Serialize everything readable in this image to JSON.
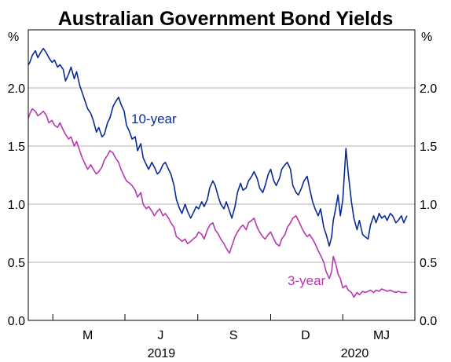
{
  "chart_data": {
    "type": "line",
    "title": "Australian Government Bond Yields",
    "unit_left": "%",
    "unit_right": "%",
    "y_ticks": [
      "0.0",
      "0.5",
      "1.0",
      "1.5",
      "2.0"
    ],
    "ylim": [
      0,
      2.5
    ],
    "x_range": [
      "2019-03-01",
      "2020-07-01"
    ],
    "month_labels": [
      "M",
      "J",
      "S",
      "D",
      "M",
      "J"
    ],
    "year_labels": [
      "2019",
      "2020"
    ],
    "grid": "horizontal",
    "colors": {
      "ten_year": "#0a2a96",
      "three_year": "#b838b0"
    },
    "series": [
      {
        "name": "10-year",
        "label": "10-year",
        "color": "#0a2a96",
        "x": [
          "2019-03-01",
          "2019-03-03",
          "2019-03-06",
          "2019-03-10",
          "2019-03-13",
          "2019-03-17",
          "2019-03-20",
          "2019-03-24",
          "2019-03-27",
          "2019-03-31",
          "2019-04-03",
          "2019-04-07",
          "2019-04-10",
          "2019-04-14",
          "2019-04-17",
          "2019-04-21",
          "2019-04-24",
          "2019-04-28",
          "2019-05-01",
          "2019-05-05",
          "2019-05-08",
          "2019-05-12",
          "2019-05-15",
          "2019-05-19",
          "2019-05-22",
          "2019-05-26",
          "2019-05-29",
          "2019-06-02",
          "2019-06-05",
          "2019-06-09",
          "2019-06-12",
          "2019-06-16",
          "2019-06-19",
          "2019-06-23",
          "2019-06-26",
          "2019-06-30",
          "2019-07-03",
          "2019-07-07",
          "2019-07-10",
          "2019-07-14",
          "2019-07-17",
          "2019-07-21",
          "2019-07-24",
          "2019-07-28",
          "2019-07-31",
          "2019-08-04",
          "2019-08-07",
          "2019-08-11",
          "2019-08-14",
          "2019-08-18",
          "2019-08-21",
          "2019-08-25",
          "2019-08-28",
          "2019-09-01",
          "2019-09-04",
          "2019-09-08",
          "2019-09-11",
          "2019-09-15",
          "2019-09-18",
          "2019-09-22",
          "2019-09-25",
          "2019-09-29",
          "2019-10-02",
          "2019-10-06",
          "2019-10-09",
          "2019-10-13",
          "2019-10-16",
          "2019-10-20",
          "2019-10-23",
          "2019-10-27",
          "2019-10-30",
          "2019-11-03",
          "2019-11-06",
          "2019-11-10",
          "2019-11-13",
          "2019-11-17",
          "2019-11-20",
          "2019-11-24",
          "2019-11-27",
          "2019-12-01",
          "2019-12-04",
          "2019-12-08",
          "2019-12-11",
          "2019-12-15",
          "2019-12-18",
          "2019-12-22",
          "2019-12-25",
          "2019-12-29",
          "2020-01-01",
          "2020-01-05",
          "2020-01-08",
          "2020-01-12",
          "2020-01-15",
          "2020-01-19",
          "2020-01-22",
          "2020-01-26",
          "2020-01-29",
          "2020-02-02",
          "2020-02-05",
          "2020-02-09",
          "2020-02-12",
          "2020-02-16",
          "2020-02-19",
          "2020-02-23",
          "2020-02-26",
          "2020-03-01",
          "2020-03-04",
          "2020-03-08",
          "2020-03-11",
          "2020-03-15",
          "2020-03-18",
          "2020-03-20",
          "2020-03-23",
          "2020-03-26",
          "2020-03-29",
          "2020-04-01",
          "2020-04-05",
          "2020-04-08",
          "2020-04-12",
          "2020-04-15",
          "2020-04-19",
          "2020-04-22",
          "2020-04-26",
          "2020-04-29",
          "2020-05-03",
          "2020-05-06",
          "2020-05-10",
          "2020-05-13",
          "2020-05-17",
          "2020-05-20",
          "2020-05-24",
          "2020-05-27",
          "2020-05-31",
          "2020-06-03",
          "2020-06-07",
          "2020-06-10",
          "2020-06-14",
          "2020-06-17",
          "2020-06-21"
        ],
        "y": [
          2.2,
          2.22,
          2.28,
          2.32,
          2.26,
          2.31,
          2.34,
          2.3,
          2.26,
          2.22,
          2.24,
          2.18,
          2.2,
          2.16,
          2.06,
          2.12,
          2.18,
          2.08,
          2.14,
          2.02,
          1.96,
          1.88,
          1.82,
          1.78,
          1.72,
          1.62,
          1.66,
          1.58,
          1.6,
          1.7,
          1.74,
          1.84,
          1.88,
          1.92,
          1.86,
          1.8,
          1.68,
          1.62,
          1.56,
          1.58,
          1.46,
          1.52,
          1.4,
          1.34,
          1.3,
          1.36,
          1.32,
          1.26,
          1.28,
          1.34,
          1.36,
          1.3,
          1.26,
          1.16,
          1.04,
          0.96,
          0.92,
          1.0,
          0.94,
          0.88,
          0.92,
          0.98,
          0.96,
          1.02,
          0.98,
          1.04,
          1.14,
          1.2,
          1.16,
          1.06,
          1.0,
          0.96,
          1.02,
          0.94,
          0.88,
          0.98,
          1.1,
          1.18,
          1.12,
          1.14,
          1.2,
          1.24,
          1.28,
          1.22,
          1.14,
          1.1,
          1.16,
          1.26,
          1.3,
          1.2,
          1.16,
          1.22,
          1.3,
          1.34,
          1.36,
          1.3,
          1.16,
          1.1,
          1.08,
          1.14,
          1.2,
          1.24,
          1.14,
          1.02,
          0.96,
          0.9,
          0.96,
          0.8,
          0.74,
          0.64,
          0.72,
          0.86,
          0.96,
          1.08,
          0.9,
          1.04,
          1.48,
          1.26,
          1.02,
          0.88,
          0.78,
          0.86,
          0.74,
          0.72,
          0.7,
          0.82,
          0.9,
          0.84,
          0.92,
          0.88,
          0.9,
          0.86,
          0.92,
          0.9,
          0.84,
          0.86,
          0.9,
          0.84,
          0.9
        ]
      },
      {
        "name": "3-year",
        "label": "3-year",
        "color": "#b838b0",
        "x": [
          "2019-03-01",
          "2019-03-03",
          "2019-03-06",
          "2019-03-10",
          "2019-03-13",
          "2019-03-17",
          "2019-03-20",
          "2019-03-24",
          "2019-03-27",
          "2019-03-31",
          "2019-04-03",
          "2019-04-07",
          "2019-04-10",
          "2019-04-14",
          "2019-04-17",
          "2019-04-21",
          "2019-04-24",
          "2019-04-28",
          "2019-05-01",
          "2019-05-05",
          "2019-05-08",
          "2019-05-12",
          "2019-05-15",
          "2019-05-19",
          "2019-05-22",
          "2019-05-26",
          "2019-05-29",
          "2019-06-02",
          "2019-06-05",
          "2019-06-09",
          "2019-06-12",
          "2019-06-16",
          "2019-06-19",
          "2019-06-23",
          "2019-06-26",
          "2019-06-30",
          "2019-07-03",
          "2019-07-07",
          "2019-07-10",
          "2019-07-14",
          "2019-07-17",
          "2019-07-21",
          "2019-07-24",
          "2019-07-28",
          "2019-07-31",
          "2019-08-04",
          "2019-08-07",
          "2019-08-11",
          "2019-08-14",
          "2019-08-18",
          "2019-08-21",
          "2019-08-25",
          "2019-08-28",
          "2019-09-01",
          "2019-09-04",
          "2019-09-08",
          "2019-09-11",
          "2019-09-15",
          "2019-09-18",
          "2019-09-22",
          "2019-09-25",
          "2019-09-29",
          "2019-10-02",
          "2019-10-06",
          "2019-10-09",
          "2019-10-13",
          "2019-10-16",
          "2019-10-20",
          "2019-10-23",
          "2019-10-27",
          "2019-10-30",
          "2019-11-03",
          "2019-11-06",
          "2019-11-10",
          "2019-11-13",
          "2019-11-17",
          "2019-11-20",
          "2019-11-24",
          "2019-11-27",
          "2019-12-01",
          "2019-12-04",
          "2019-12-08",
          "2019-12-11",
          "2019-12-15",
          "2019-12-18",
          "2019-12-22",
          "2019-12-25",
          "2019-12-29",
          "2020-01-01",
          "2020-01-05",
          "2020-01-08",
          "2020-01-12",
          "2020-01-15",
          "2020-01-19",
          "2020-01-22",
          "2020-01-26",
          "2020-01-29",
          "2020-02-02",
          "2020-02-05",
          "2020-02-09",
          "2020-02-12",
          "2020-02-16",
          "2020-02-19",
          "2020-02-23",
          "2020-02-26",
          "2020-03-01",
          "2020-03-04",
          "2020-03-08",
          "2020-03-11",
          "2020-03-15",
          "2020-03-18",
          "2020-03-20",
          "2020-03-23",
          "2020-03-26",
          "2020-03-29",
          "2020-04-01",
          "2020-04-05",
          "2020-04-08",
          "2020-04-12",
          "2020-04-15",
          "2020-04-19",
          "2020-04-22",
          "2020-04-26",
          "2020-04-29",
          "2020-05-03",
          "2020-05-06",
          "2020-05-10",
          "2020-05-13",
          "2020-05-17",
          "2020-05-20",
          "2020-05-24",
          "2020-05-27",
          "2020-05-31",
          "2020-06-03",
          "2020-06-07",
          "2020-06-10",
          "2020-06-14",
          "2020-06-17",
          "2020-06-21"
        ],
        "y": [
          1.74,
          1.78,
          1.82,
          1.8,
          1.76,
          1.78,
          1.8,
          1.76,
          1.7,
          1.72,
          1.68,
          1.66,
          1.7,
          1.64,
          1.6,
          1.56,
          1.58,
          1.5,
          1.54,
          1.46,
          1.4,
          1.34,
          1.3,
          1.34,
          1.3,
          1.26,
          1.28,
          1.32,
          1.38,
          1.42,
          1.46,
          1.44,
          1.4,
          1.36,
          1.3,
          1.24,
          1.2,
          1.18,
          1.16,
          1.12,
          1.06,
          1.1,
          1.0,
          0.96,
          0.98,
          0.94,
          0.9,
          0.94,
          0.96,
          0.9,
          0.92,
          0.88,
          0.84,
          0.8,
          0.72,
          0.7,
          0.68,
          0.7,
          0.66,
          0.68,
          0.7,
          0.72,
          0.76,
          0.74,
          0.7,
          0.78,
          0.82,
          0.84,
          0.78,
          0.74,
          0.7,
          0.66,
          0.62,
          0.58,
          0.64,
          0.72,
          0.76,
          0.8,
          0.82,
          0.78,
          0.84,
          0.86,
          0.88,
          0.8,
          0.76,
          0.72,
          0.7,
          0.74,
          0.76,
          0.7,
          0.66,
          0.64,
          0.7,
          0.74,
          0.8,
          0.84,
          0.88,
          0.9,
          0.86,
          0.8,
          0.76,
          0.72,
          0.74,
          0.7,
          0.66,
          0.6,
          0.56,
          0.5,
          0.42,
          0.36,
          0.42,
          0.55,
          0.49,
          0.4,
          0.36,
          0.28,
          0.3,
          0.26,
          0.24,
          0.2,
          0.24,
          0.22,
          0.25,
          0.24,
          0.25,
          0.26,
          0.24,
          0.26,
          0.25,
          0.27,
          0.26,
          0.25,
          0.26,
          0.25,
          0.24,
          0.25,
          0.24,
          0.24,
          0.24
        ]
      }
    ]
  }
}
